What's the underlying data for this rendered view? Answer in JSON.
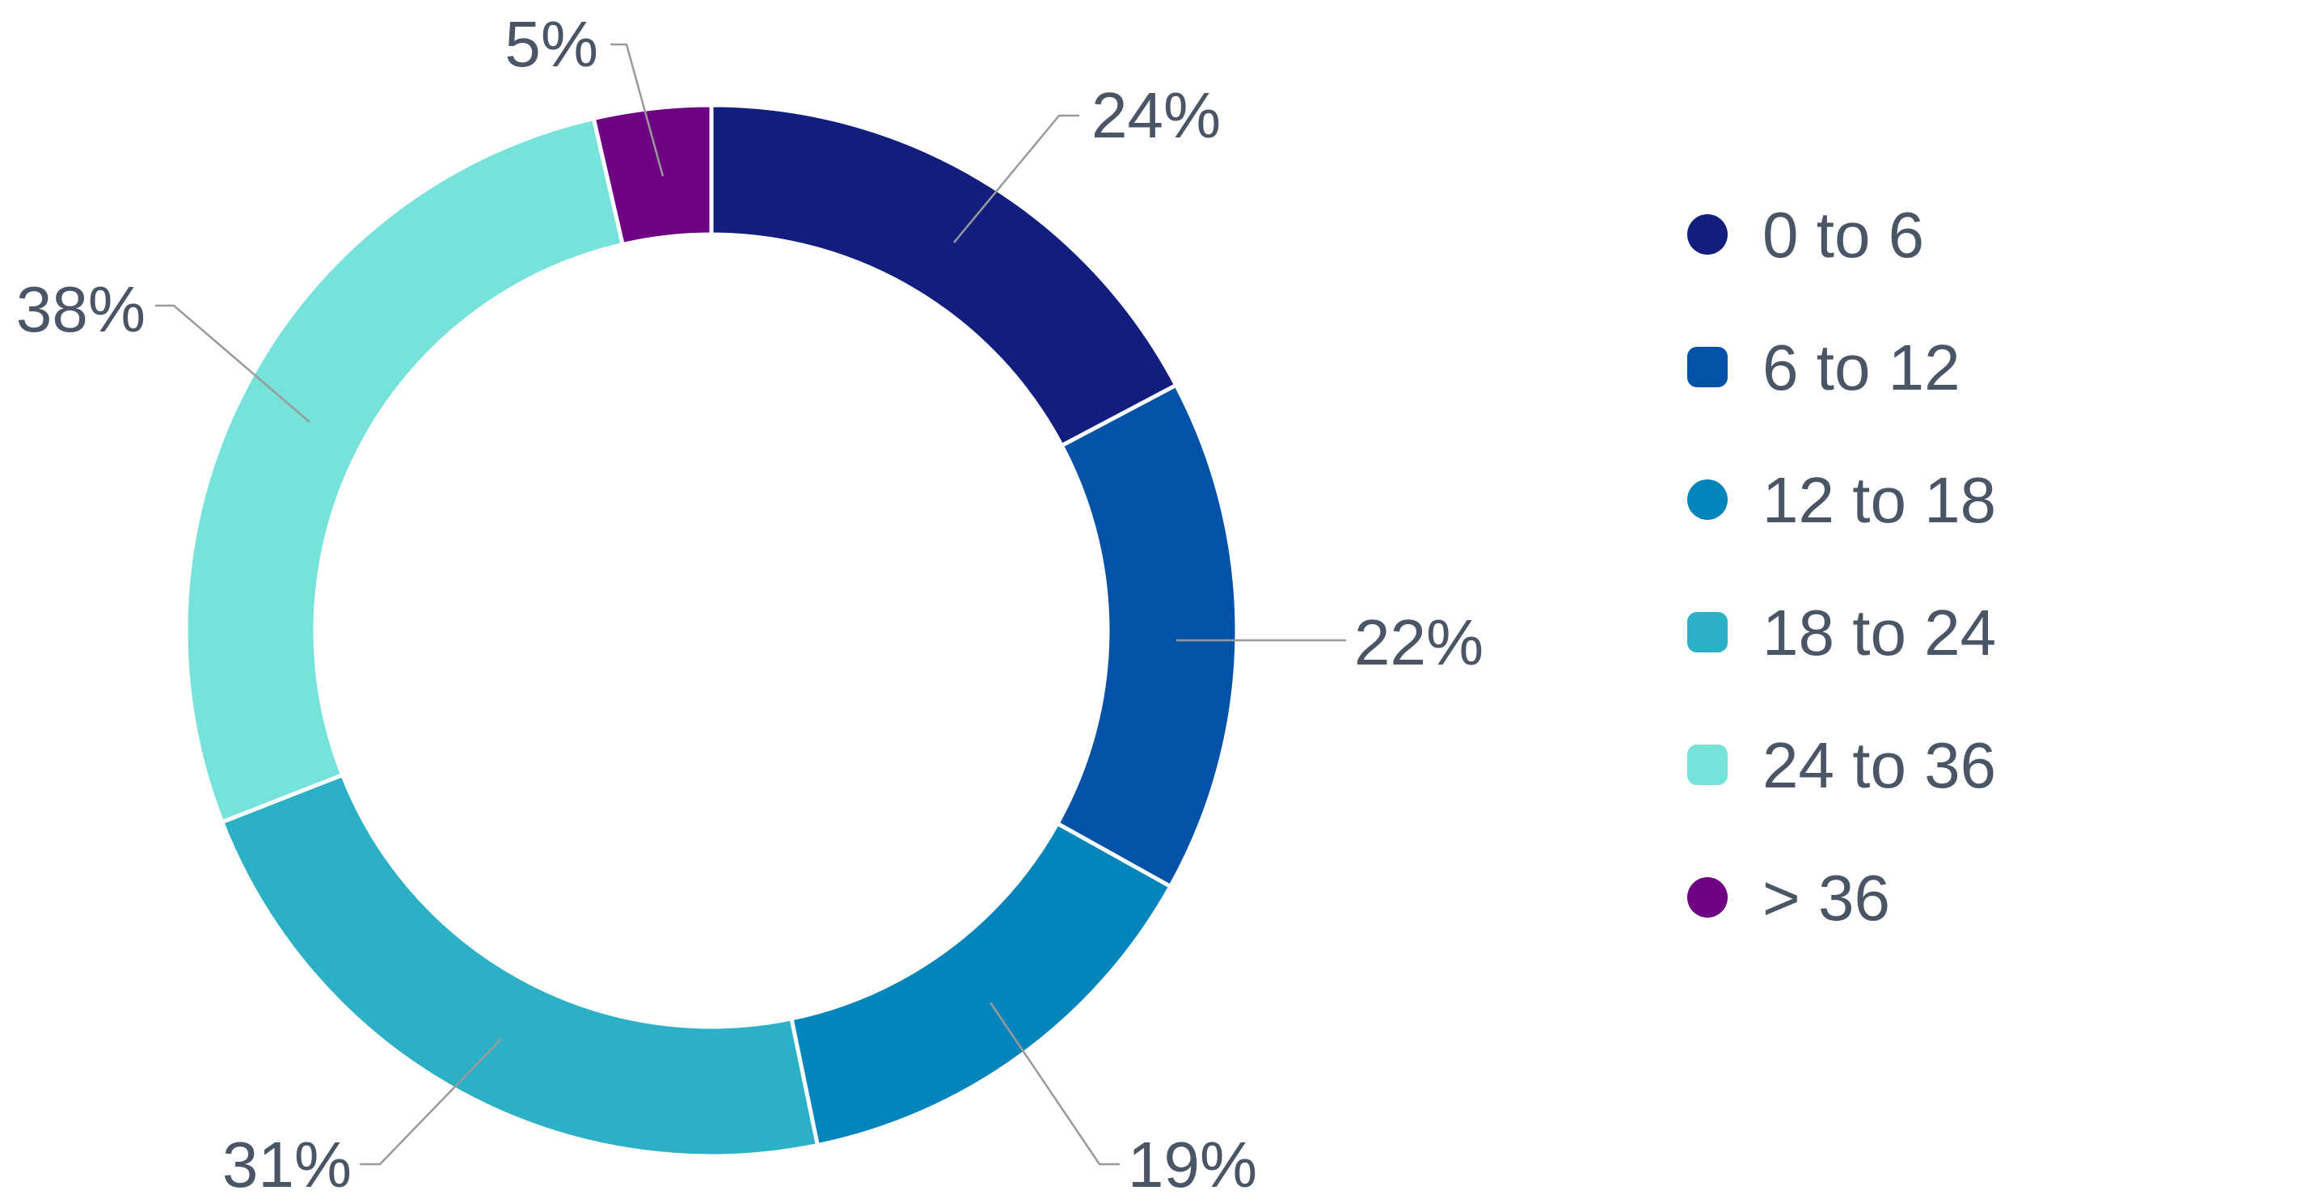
{
  "chart_data": {
    "type": "pie",
    "style": "donut",
    "categories": [
      "0 to 6",
      "6 to 12",
      "12 to 18",
      "18 to 24",
      "24 to 36",
      "> 36"
    ],
    "values": [
      24,
      22,
      19,
      31,
      38,
      5
    ],
    "value_labels": [
      "24%",
      "22%",
      "19%",
      "31%",
      "38%",
      "5%"
    ],
    "colors": [
      "#111e7d",
      "#0252a8",
      "#0385bb",
      "#2bb0c5",
      "#76e2da",
      "#6e0083"
    ],
    "legend_position": "right",
    "title": "",
    "xlabel": "",
    "ylabel": ""
  }
}
